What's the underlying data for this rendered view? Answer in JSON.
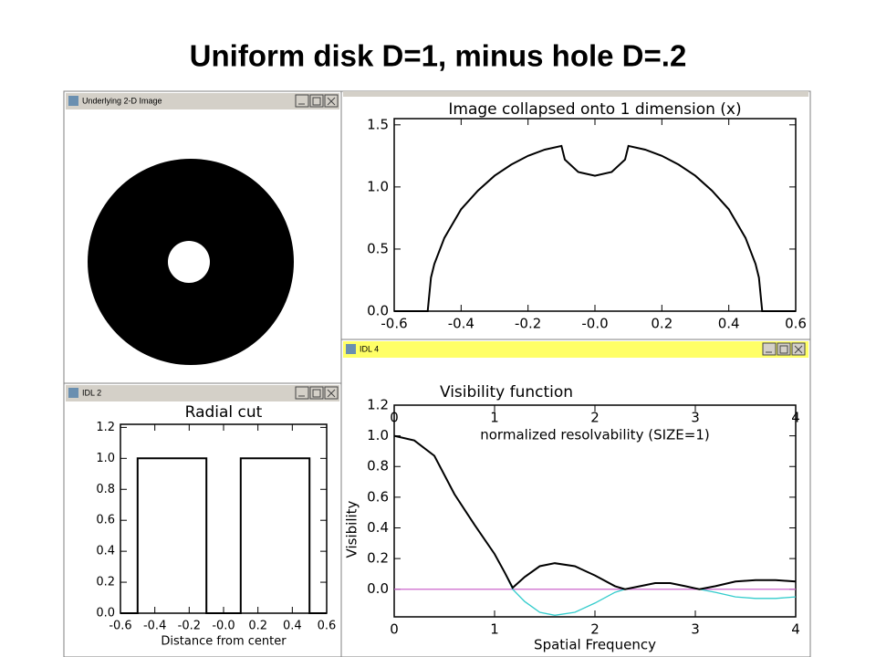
{
  "title": "Uniform disk D=1, minus hole D=.2",
  "windows": [
    {
      "title": "Underlying 2-D Image"
    },
    {
      "title": "IDL 2"
    },
    {
      "title": "IDL 4"
    }
  ],
  "chart_data": [
    {
      "type": "line",
      "title": "Image collapsed onto 1 dimension (x)",
      "x": [
        -0.6,
        -0.5,
        -0.49,
        -0.48,
        -0.45,
        -0.4,
        -0.35,
        -0.3,
        -0.25,
        -0.2,
        -0.15,
        -0.1,
        -0.09,
        -0.05,
        0,
        0.05,
        0.09,
        0.1,
        0.15,
        0.2,
        0.25,
        0.3,
        0.35,
        0.4,
        0.45,
        0.48,
        0.49,
        0.5,
        0.6
      ],
      "series": [
        {
          "color": "#000000",
          "values": [
            0,
            0,
            0.27,
            0.38,
            0.59,
            0.82,
            0.97,
            1.09,
            1.18,
            1.25,
            1.3,
            1.33,
            1.22,
            1.12,
            1.09,
            1.12,
            1.22,
            1.33,
            1.3,
            1.25,
            1.18,
            1.09,
            0.97,
            0.82,
            0.59,
            0.38,
            0.27,
            0,
            0
          ]
        }
      ],
      "xlim": [
        -0.6,
        0.6
      ],
      "ylim": [
        0,
        1.55
      ],
      "xticks": [
        -0.6,
        -0.4,
        -0.2,
        {
          "value": 0,
          "label": "-0.0"
        },
        0.2,
        0.4,
        0.6
      ],
      "yticks": [
        {
          "value": 0,
          "label": "0.0"
        },
        0.5,
        {
          "value": 1,
          "label": "1.0"
        },
        1.5
      ]
    },
    {
      "type": "line",
      "title": "Radial cut",
      "xlabel": "Distance from center",
      "x": [
        -0.6,
        -0.5,
        -0.5,
        -0.1,
        -0.1,
        0.1,
        0.1,
        0.5,
        0.5,
        0.6
      ],
      "series": [
        {
          "color": "#000000",
          "values": [
            0,
            0,
            1,
            1,
            0,
            0,
            1,
            1,
            0,
            0
          ]
        }
      ],
      "xlim": [
        -0.6,
        0.6
      ],
      "ylim": [
        0,
        1.22
      ],
      "xticks": [
        -0.6,
        -0.4,
        -0.2,
        {
          "value": 0,
          "label": "-0.0"
        },
        0.2,
        0.4,
        0.6
      ],
      "yticks": [
        {
          "value": 0,
          "label": "0.0"
        },
        0.2,
        0.4,
        0.6,
        0.8,
        {
          "value": 1,
          "label": "1.0"
        },
        1.2
      ]
    },
    {
      "type": "line",
      "title": "Visibility function",
      "xlabel": "Spatial Frequency",
      "ylabel": "Visibility",
      "x2label": "normalized resolvability (SIZE=1)",
      "x": [
        0,
        0.2,
        0.4,
        0.6,
        0.8,
        1.0,
        1.1,
        1.18,
        1.3,
        1.45,
        1.6,
        1.8,
        2.0,
        2.2,
        2.3,
        2.45,
        2.6,
        2.75,
        2.9,
        3.04,
        3.2,
        3.4,
        3.6,
        3.8,
        4.0
      ],
      "series": [
        {
          "color": "#000000",
          "values": [
            1.0,
            0.97,
            0.87,
            0.62,
            0.42,
            0.23,
            0.11,
            0.01,
            0.08,
            0.15,
            0.17,
            0.15,
            0.09,
            0.02,
            0.0,
            0.02,
            0.04,
            0.04,
            0.02,
            0.0,
            0.02,
            0.05,
            0.06,
            0.06,
            0.05
          ]
        },
        {
          "color": "#33cccc",
          "values": [
            1.0,
            0.97,
            0.87,
            0.62,
            0.42,
            0.23,
            0.11,
            0.0,
            -0.08,
            -0.15,
            -0.17,
            -0.15,
            -0.09,
            -0.02,
            0.0,
            0.02,
            0.04,
            0.04,
            0.02,
            0.0,
            -0.02,
            -0.05,
            -0.06,
            -0.06,
            -0.05
          ]
        }
      ],
      "hline": 0,
      "hline_color": "#cc66cc",
      "xlim": [
        0,
        4
      ],
      "ylim": [
        -0.18,
        1.2
      ],
      "xticks": [
        0,
        1,
        2,
        3,
        4
      ],
      "x2ticks": [
        0,
        1,
        2,
        3,
        4
      ],
      "yticks": [
        {
          "value": 0,
          "label": "0.0"
        },
        0.2,
        0.4,
        0.6,
        0.8,
        {
          "value": 1,
          "label": "1.0"
        },
        1.2
      ]
    }
  ]
}
